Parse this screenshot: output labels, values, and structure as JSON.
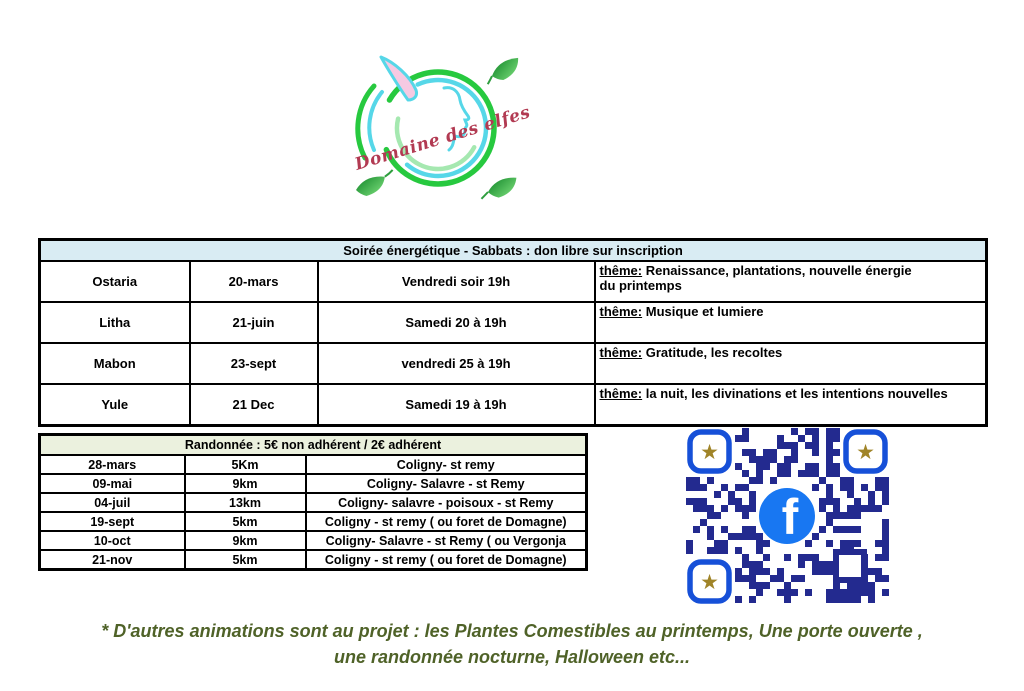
{
  "logo": {
    "text": "Domaine des elfes",
    "text_color": "#b23a52",
    "circle_green": "#27c93f",
    "swirl_cyan": "#56d7e8",
    "swirl_light_green": "#a5e8b0",
    "ear_pink": "#f6c9e2"
  },
  "sabbats_table": {
    "title": "Soirée énergétique - Sabbats : don libre sur inscription",
    "header_bg": "#d9ecf3",
    "rows": [
      {
        "name": "Ostaria",
        "date": "20-mars",
        "time": "Vendredi soir 19h",
        "theme_label": "thême:",
        "theme": " Renaissance, plantations, nouvelle énergie\n du printemps"
      },
      {
        "name": "Litha",
        "date": "21-juin",
        "time": "Samedi 20 à 19h",
        "theme_label": "thême:",
        "theme": " Musique et lumiere"
      },
      {
        "name": "Mabon",
        "date": "23-sept",
        "time": "vendredi 25 à 19h",
        "theme_label": "thême:",
        "theme": " Gratitude, les recoltes"
      },
      {
        "name": "Yule",
        "date": "21 Dec",
        "time": "Samedi 19 à 19h",
        "theme_label": "thême:",
        "theme": " la nuit, les divinations et les intentions nouvelles"
      }
    ]
  },
  "hike_table": {
    "title": "Randonnée : 5€ non adhérent / 2€ adhérent",
    "header_bg": "#ebf1de",
    "rows": [
      {
        "date": "28-mars",
        "distance": "5Km",
        "route": "Coligny- st remy"
      },
      {
        "date": "09-mai",
        "distance": "9km",
        "route": "Coligny- Salavre - st Remy"
      },
      {
        "date": "04-juil",
        "distance": "13km",
        "route": "Coligny- salavre - poisoux - st Remy"
      },
      {
        "date": "19-sept",
        "distance": "5km",
        "route": "Coligny - st remy ( ou foret de Domagne)"
      },
      {
        "date": "10-oct",
        "distance": "9km",
        "route": "Coligny- Salavre - st Remy ( ou Vergonja"
      },
      {
        "date": "21-nov",
        "distance": "5km",
        "route": "Coligny - st remy ( ou foret de Domagne)"
      }
    ]
  },
  "qr": {
    "label": "facebook-qr-code",
    "star": "★",
    "facebook_f": "f",
    "module_color": "#232a8f",
    "finder_color": "#1650d8",
    "star_color": "#a08428",
    "facebook_blue": "#1877f2"
  },
  "footnote": {
    "line1": "* D'autres animations sont au projet : les Plantes Comestibles au printemps, Une porte ouverte ,",
    "line2": "une randonnée nocturne, Halloween etc...",
    "color": "#4f6228"
  }
}
